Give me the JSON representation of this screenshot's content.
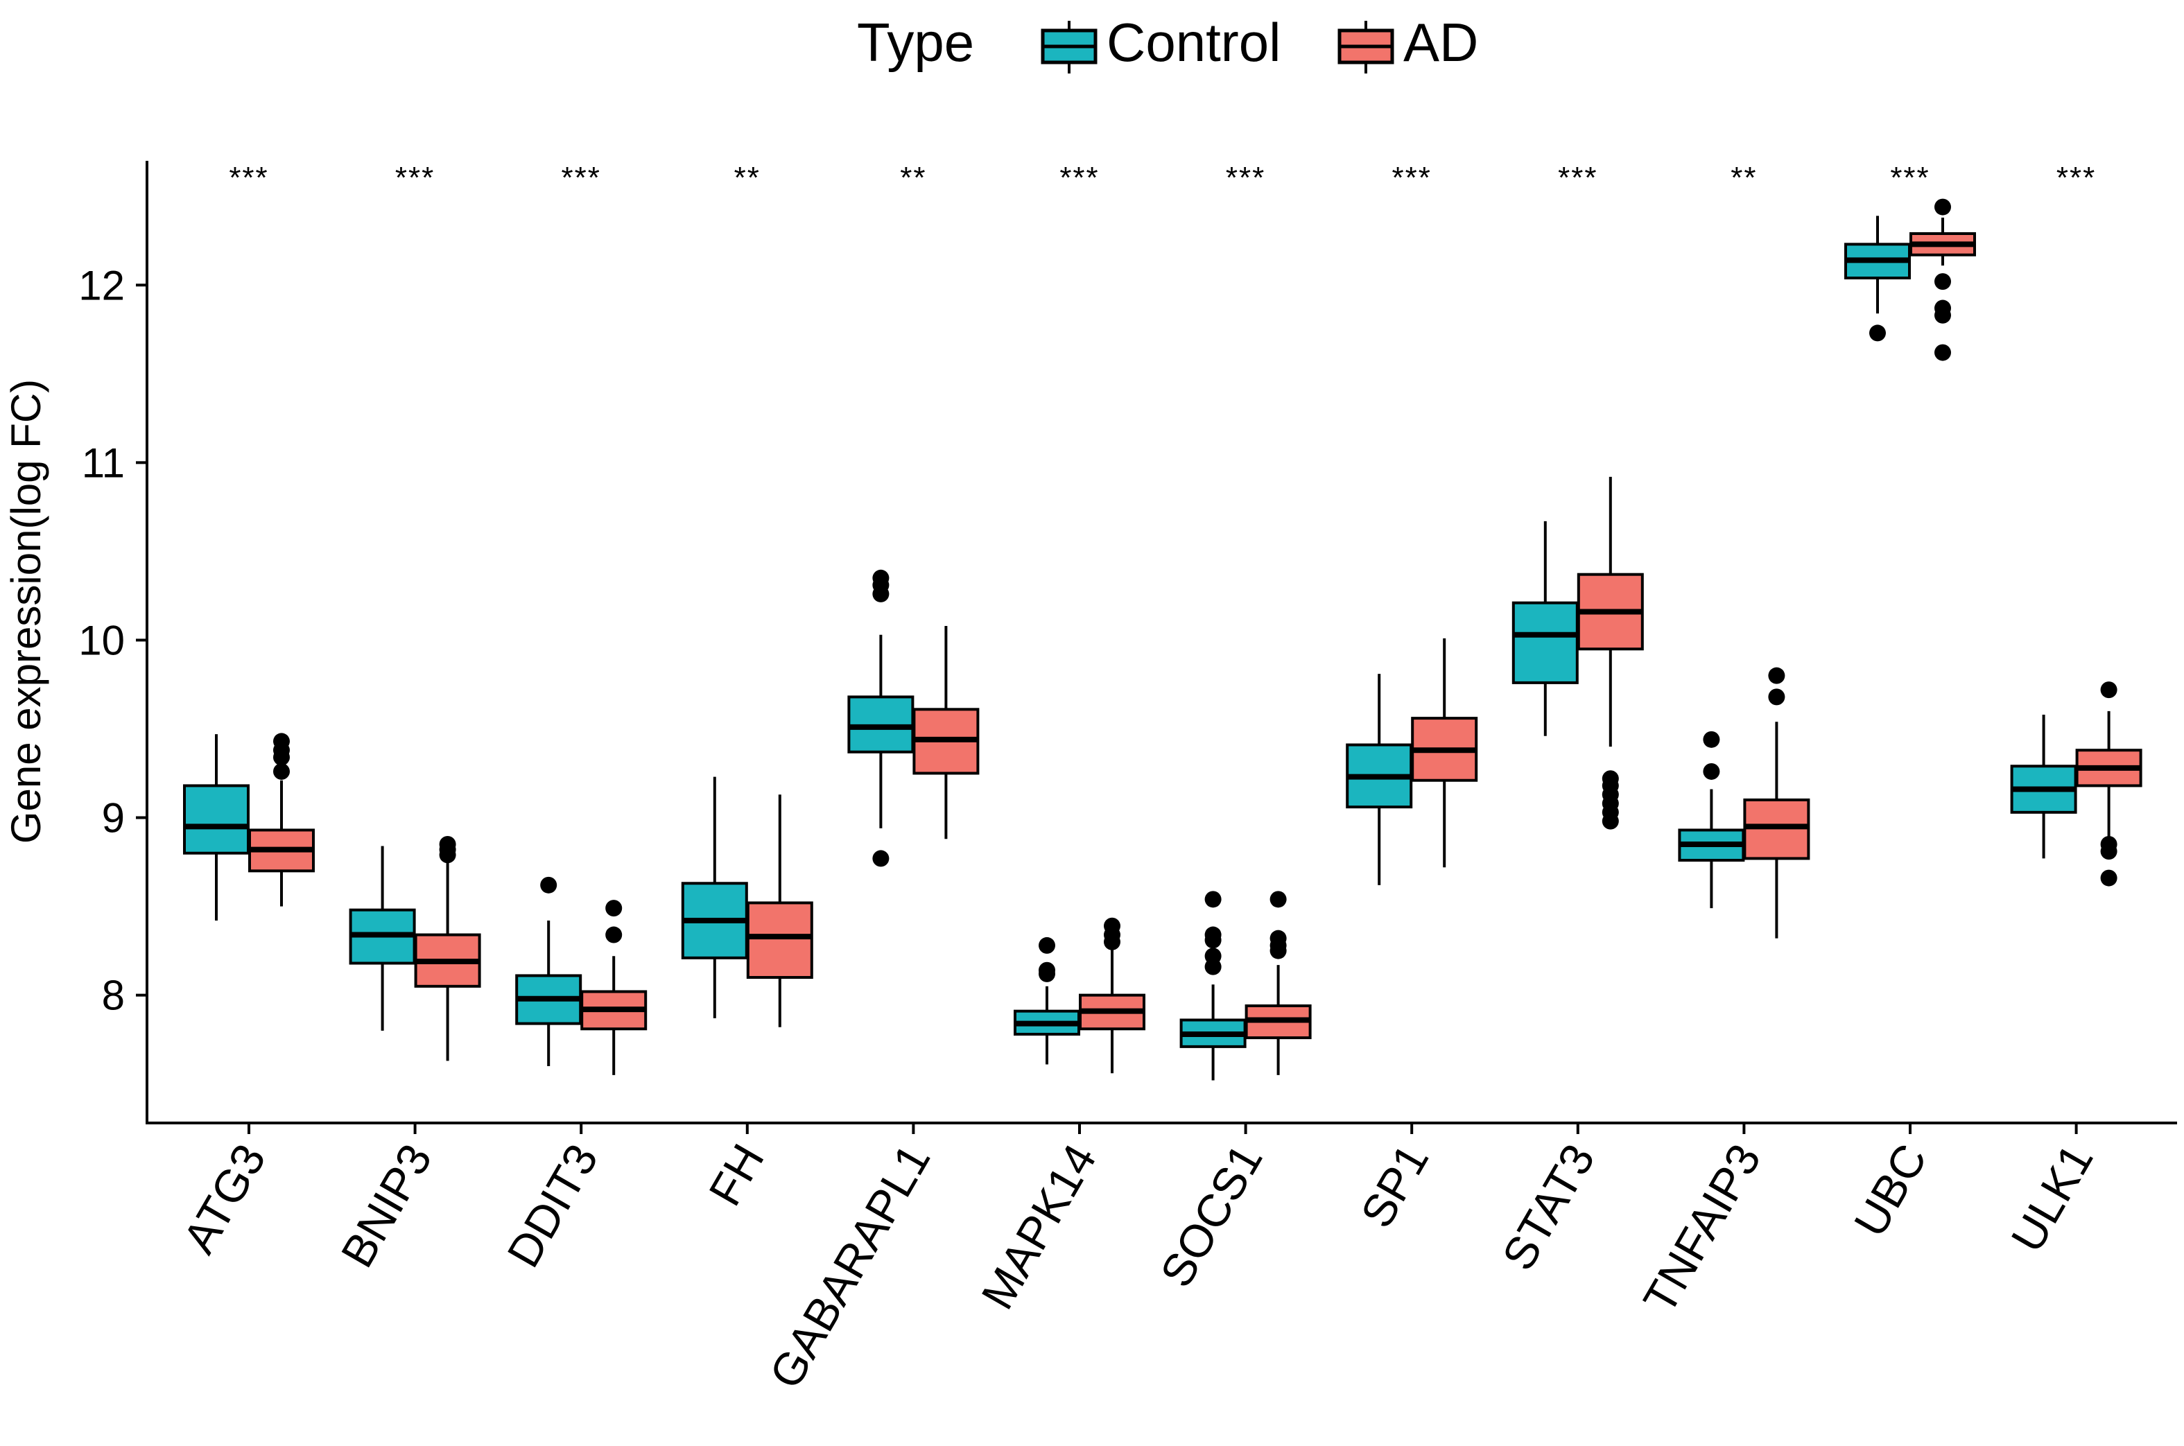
{
  "chart_data": {
    "type": "boxplot",
    "title": "",
    "legend": {
      "title": "Type",
      "placement": "top-center",
      "entries": [
        {
          "name": "Control",
          "color": "#1BB5BF"
        },
        {
          "name": "AD",
          "color": "#F2746B"
        }
      ]
    },
    "xlabel": "",
    "ylabel": "Gene expression(log FC)",
    "ylim": [
      7.28,
      12.7
    ],
    "yticks": [
      "8",
      "9",
      "10",
      "11",
      "12"
    ],
    "categories": [
      "ATG3",
      "BNIP3",
      "DDIT3",
      "FH",
      "GABARAPL1",
      "MAPK14",
      "SOCS1",
      "SP1",
      "STAT3",
      "TNFAIP3",
      "UBC",
      "ULK1"
    ],
    "significance": [
      "***",
      "***",
      "***",
      "**",
      "**",
      "***",
      "***",
      "***",
      "***",
      "**",
      "***",
      "***"
    ],
    "series": [
      {
        "name": "Control",
        "color": "#1BB5BF",
        "boxes": [
          {
            "min": 8.42,
            "q1": 8.8,
            "median": 8.95,
            "q3": 9.18,
            "max": 9.47,
            "outliers": []
          },
          {
            "min": 7.8,
            "q1": 8.18,
            "median": 8.34,
            "q3": 8.48,
            "max": 8.84,
            "outliers": []
          },
          {
            "min": 7.6,
            "q1": 7.84,
            "median": 7.98,
            "q3": 8.11,
            "max": 8.42,
            "outliers": [
              8.62
            ]
          },
          {
            "min": 7.87,
            "q1": 8.21,
            "median": 8.42,
            "q3": 8.63,
            "max": 9.23,
            "outliers": []
          },
          {
            "min": 8.94,
            "q1": 9.37,
            "median": 9.51,
            "q3": 9.68,
            "max": 10.03,
            "outliers": [
              8.77,
              10.26,
              10.31,
              10.35
            ]
          },
          {
            "min": 7.61,
            "q1": 7.78,
            "median": 7.84,
            "q3": 7.91,
            "max": 8.05,
            "outliers": [
              8.12,
              8.14,
              8.28
            ]
          },
          {
            "min": 7.52,
            "q1": 7.71,
            "median": 7.78,
            "q3": 7.86,
            "max": 8.06,
            "outliers": [
              8.16,
              8.22,
              8.31,
              8.34,
              8.54
            ]
          },
          {
            "min": 8.62,
            "q1": 9.06,
            "median": 9.23,
            "q3": 9.41,
            "max": 9.81,
            "outliers": []
          },
          {
            "min": 9.46,
            "q1": 9.76,
            "median": 10.03,
            "q3": 10.21,
            "max": 10.67,
            "outliers": []
          },
          {
            "min": 8.49,
            "q1": 8.76,
            "median": 8.85,
            "q3": 8.93,
            "max": 9.16,
            "outliers": [
              9.26,
              9.44
            ]
          },
          {
            "min": 11.84,
            "q1": 12.04,
            "median": 12.14,
            "q3": 12.23,
            "max": 12.39,
            "outliers": [
              11.73
            ]
          },
          {
            "min": 8.77,
            "q1": 9.03,
            "median": 9.16,
            "q3": 9.29,
            "max": 9.58,
            "outliers": []
          }
        ]
      },
      {
        "name": "AD",
        "color": "#F2746B",
        "boxes": [
          {
            "min": 8.5,
            "q1": 8.7,
            "median": 8.82,
            "q3": 8.93,
            "max": 9.21,
            "outliers": [
              9.26,
              9.34,
              9.38,
              9.43
            ]
          },
          {
            "min": 7.63,
            "q1": 8.05,
            "median": 8.19,
            "q3": 8.34,
            "max": 8.76,
            "outliers": [
              8.79,
              8.82,
              8.85
            ]
          },
          {
            "min": 7.55,
            "q1": 7.81,
            "median": 7.92,
            "q3": 8.02,
            "max": 8.22,
            "outliers": [
              8.34,
              8.49
            ]
          },
          {
            "min": 7.82,
            "q1": 8.1,
            "median": 8.33,
            "q3": 8.52,
            "max": 9.13,
            "outliers": []
          },
          {
            "min": 8.88,
            "q1": 9.25,
            "median": 9.44,
            "q3": 9.61,
            "max": 10.08,
            "outliers": []
          },
          {
            "min": 7.56,
            "q1": 7.81,
            "median": 7.91,
            "q3": 8.0,
            "max": 8.26,
            "outliers": [
              8.3,
              8.34,
              8.39
            ]
          },
          {
            "min": 7.55,
            "q1": 7.76,
            "median": 7.86,
            "q3": 7.94,
            "max": 8.17,
            "outliers": [
              8.25,
              8.28,
              8.32,
              8.54
            ]
          },
          {
            "min": 8.72,
            "q1": 9.21,
            "median": 9.38,
            "q3": 9.56,
            "max": 10.01,
            "outliers": []
          },
          {
            "min": 9.4,
            "q1": 9.95,
            "median": 10.16,
            "q3": 10.37,
            "max": 10.92,
            "outliers": [
              8.98,
              9.03,
              9.08,
              9.13,
              9.18,
              9.22
            ]
          },
          {
            "min": 8.32,
            "q1": 8.77,
            "median": 8.95,
            "q3": 9.1,
            "max": 9.54,
            "outliers": [
              9.68,
              9.8
            ]
          },
          {
            "min": 12.11,
            "q1": 12.17,
            "median": 12.23,
            "q3": 12.29,
            "max": 12.38,
            "outliers": [
              11.62,
              11.83,
              11.87,
              12.02,
              12.44
            ]
          },
          {
            "min": 8.88,
            "q1": 9.18,
            "median": 9.28,
            "q3": 9.38,
            "max": 9.6,
            "outliers": [
              8.66,
              8.81,
              8.85,
              9.72
            ]
          }
        ]
      }
    ]
  }
}
